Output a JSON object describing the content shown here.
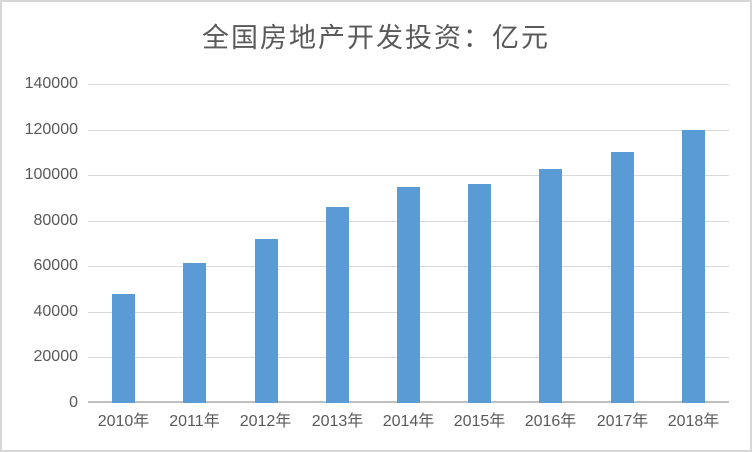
{
  "chart_data": {
    "type": "bar",
    "title": "全国房地产开发投资：亿元",
    "categories": [
      "2010年",
      "2011年",
      "2012年",
      "2013年",
      "2014年",
      "2015年",
      "2016年",
      "2017年",
      "2018年"
    ],
    "values": [
      48000,
      61500,
      72000,
      86000,
      95000,
      96000,
      102500,
      110000,
      120000
    ],
    "xlabel": "",
    "ylabel": "",
    "ylim": [
      0,
      140000
    ],
    "ytick_step": 20000,
    "ytick_labels": [
      "0",
      "20000",
      "40000",
      "60000",
      "80000",
      "100000",
      "120000",
      "140000"
    ],
    "grid": true,
    "legend": "none"
  },
  "style": {
    "bar_color": "#5B9BD5",
    "gridline_color": "#D9D9D9",
    "axis_line_color": "#BFBFBF",
    "text_color": "#595959",
    "frame_border_color": "#D7D7D7",
    "background_color": "#FFFFFF"
  }
}
